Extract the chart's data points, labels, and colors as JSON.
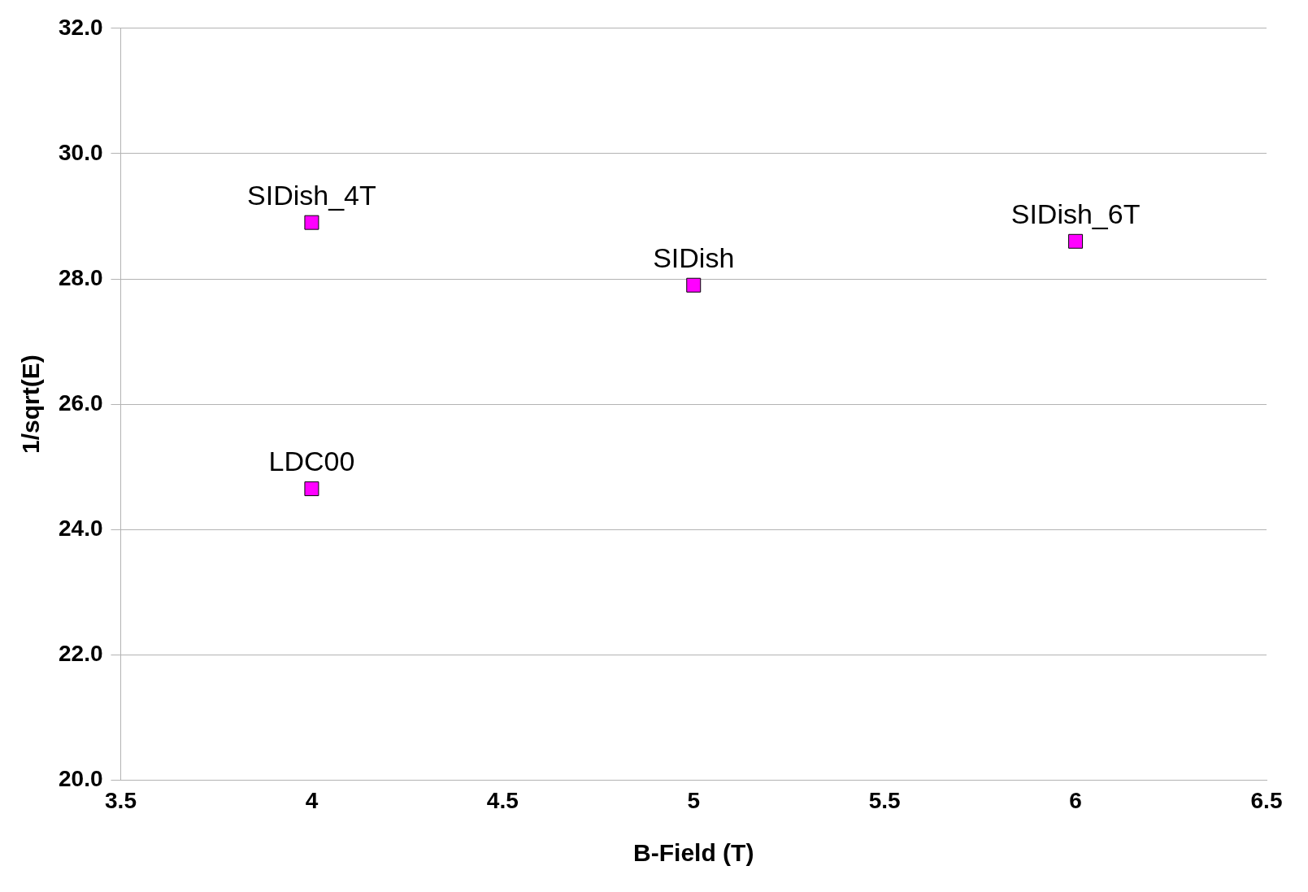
{
  "chart_data": {
    "type": "scatter",
    "xlabel": "B-Field (T)",
    "ylabel": "1/sqrt(E)",
    "x": [
      4,
      4,
      5,
      6
    ],
    "series": [
      {
        "color": "#ff00ff",
        "values": [
          28.9,
          24.65,
          27.9,
          28.6
        ]
      }
    ],
    "marker": "square",
    "grid": "y",
    "legend": false,
    "xlim": [
      3.5,
      6.5
    ],
    "xticks": [
      3.5,
      4,
      4.5,
      5,
      5.5,
      6,
      6.5
    ],
    "ylim": [
      20,
      32
    ],
    "yticks": [
      {
        "value": 20,
        "label": "20.0"
      },
      {
        "value": 22,
        "label": "22.0"
      },
      {
        "value": 24,
        "label": "24.0"
      },
      {
        "value": 26,
        "label": "26.0"
      },
      {
        "value": 28,
        "label": "28.0"
      },
      {
        "value": 30,
        "label": "30.0"
      },
      {
        "value": 32,
        "label": "32.0"
      }
    ],
    "annotations": [
      {
        "text": "SIDish_4T",
        "x": 4,
        "y": 28.9
      },
      {
        "text": "LDC00",
        "x": 4,
        "y": 24.65
      },
      {
        "text": "SIDish",
        "x": 5,
        "y": 27.9
      },
      {
        "text": "SIDish_6T",
        "x": 6,
        "y": 28.6
      }
    ]
  }
}
